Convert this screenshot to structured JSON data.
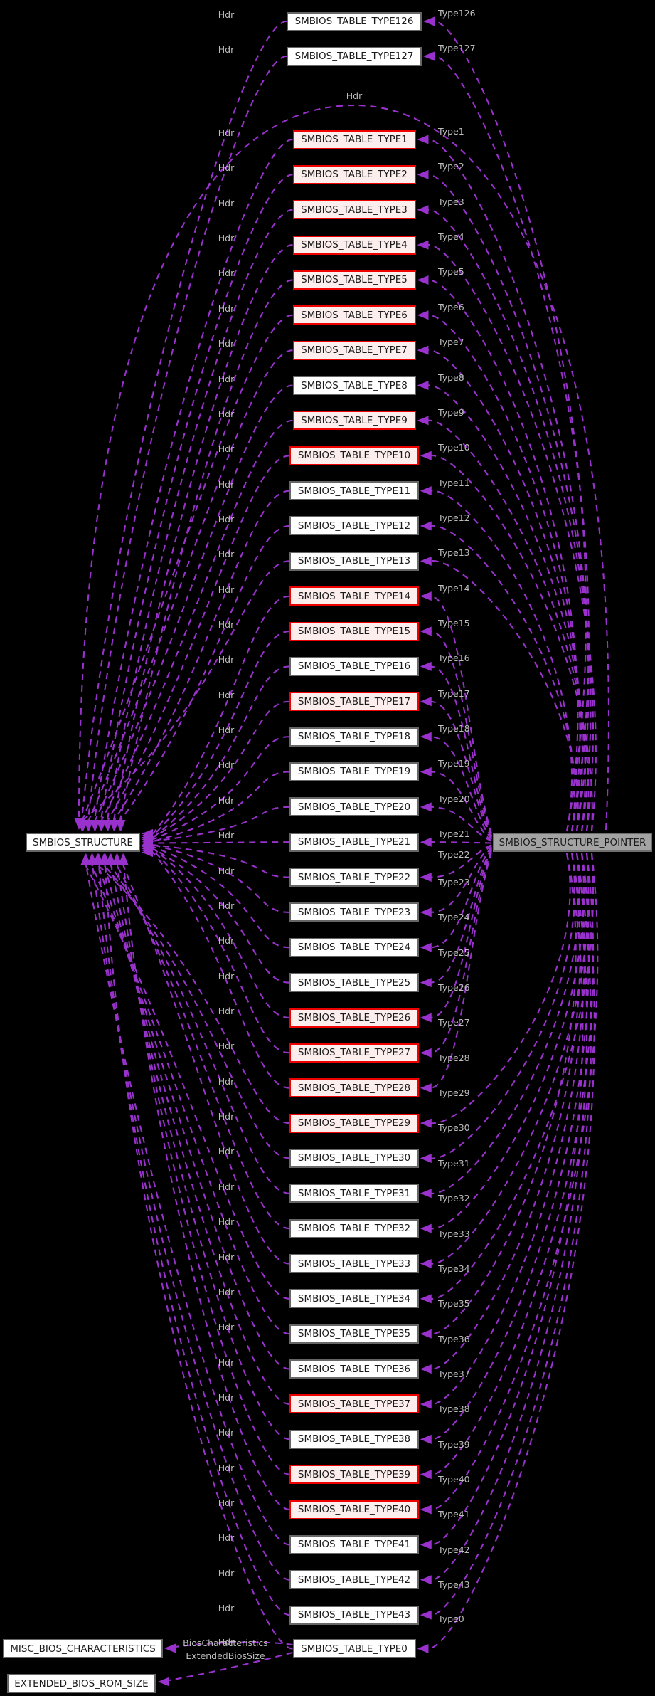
{
  "diagram": {
    "background_color": "#000000",
    "edge_color": "#9932cc",
    "edge_label_color": "#bdbdbd",
    "node_fill": "#ffffff",
    "node_border": "#666666",
    "node_text_color": "#1a1a1a",
    "red_node_border": "#ee0000",
    "red_node_fill": "#fdeeee",
    "left_node": {
      "label": "SMBIOS_STRUCTURE"
    },
    "right_node": {
      "label": "SMBIOS_STRUCTURE_POINTER",
      "fill": "#a3a3a3",
      "border": "#6e6e6e"
    },
    "top_hdr_label": "Hdr",
    "hdr_edge_label": "Hdr",
    "rows": [
      {
        "label": "SMBIOS_TABLE_TYPE126",
        "type_label": "Type126",
        "red": false
      },
      {
        "label": "SMBIOS_TABLE_TYPE127",
        "type_label": "Type127",
        "red": false
      },
      {
        "label": "SMBIOS_TABLE_TYPE1",
        "type_label": "Type1",
        "red": true
      },
      {
        "label": "SMBIOS_TABLE_TYPE2",
        "type_label": "Type2",
        "red": true
      },
      {
        "label": "SMBIOS_TABLE_TYPE3",
        "type_label": "Type3",
        "red": true
      },
      {
        "label": "SMBIOS_TABLE_TYPE4",
        "type_label": "Type4",
        "red": true
      },
      {
        "label": "SMBIOS_TABLE_TYPE5",
        "type_label": "Type5",
        "red": true
      },
      {
        "label": "SMBIOS_TABLE_TYPE6",
        "type_label": "Type6",
        "red": true
      },
      {
        "label": "SMBIOS_TABLE_TYPE7",
        "type_label": "Type7",
        "red": true
      },
      {
        "label": "SMBIOS_TABLE_TYPE8",
        "type_label": "Type8",
        "red": false
      },
      {
        "label": "SMBIOS_TABLE_TYPE9",
        "type_label": "Type9",
        "red": true
      },
      {
        "label": "SMBIOS_TABLE_TYPE10",
        "type_label": "Type10",
        "red": true
      },
      {
        "label": "SMBIOS_TABLE_TYPE11",
        "type_label": "Type11",
        "red": false
      },
      {
        "label": "SMBIOS_TABLE_TYPE12",
        "type_label": "Type12",
        "red": false
      },
      {
        "label": "SMBIOS_TABLE_TYPE13",
        "type_label": "Type13",
        "red": false
      },
      {
        "label": "SMBIOS_TABLE_TYPE14",
        "type_label": "Type14",
        "red": true
      },
      {
        "label": "SMBIOS_TABLE_TYPE15",
        "type_label": "Type15",
        "red": true
      },
      {
        "label": "SMBIOS_TABLE_TYPE16",
        "type_label": "Type16",
        "red": false
      },
      {
        "label": "SMBIOS_TABLE_TYPE17",
        "type_label": "Type17",
        "red": true
      },
      {
        "label": "SMBIOS_TABLE_TYPE18",
        "type_label": "Type18",
        "red": false
      },
      {
        "label": "SMBIOS_TABLE_TYPE19",
        "type_label": "Type19",
        "red": false
      },
      {
        "label": "SMBIOS_TABLE_TYPE20",
        "type_label": "Type20",
        "red": false
      },
      {
        "label": "SMBIOS_TABLE_TYPE21",
        "type_label": "Type21",
        "red": false
      },
      {
        "label": "SMBIOS_TABLE_TYPE22",
        "type_label": "Type22",
        "red": false
      },
      {
        "label": "SMBIOS_TABLE_TYPE23",
        "type_label": "Type23",
        "red": false
      },
      {
        "label": "SMBIOS_TABLE_TYPE24",
        "type_label": "Type24",
        "red": false
      },
      {
        "label": "SMBIOS_TABLE_TYPE25",
        "type_label": "Type25",
        "red": false
      },
      {
        "label": "SMBIOS_TABLE_TYPE26",
        "type_label": "Type26",
        "red": true
      },
      {
        "label": "SMBIOS_TABLE_TYPE27",
        "type_label": "Type27",
        "red": true
      },
      {
        "label": "SMBIOS_TABLE_TYPE28",
        "type_label": "Type28",
        "red": true
      },
      {
        "label": "SMBIOS_TABLE_TYPE29",
        "type_label": "Type29",
        "red": true
      },
      {
        "label": "SMBIOS_TABLE_TYPE30",
        "type_label": "Type30",
        "red": false
      },
      {
        "label": "SMBIOS_TABLE_TYPE31",
        "type_label": "Type31",
        "red": false
      },
      {
        "label": "SMBIOS_TABLE_TYPE32",
        "type_label": "Type32",
        "red": false
      },
      {
        "label": "SMBIOS_TABLE_TYPE33",
        "type_label": "Type33",
        "red": false
      },
      {
        "label": "SMBIOS_TABLE_TYPE34",
        "type_label": "Type34",
        "red": false
      },
      {
        "label": "SMBIOS_TABLE_TYPE35",
        "type_label": "Type35",
        "red": false
      },
      {
        "label": "SMBIOS_TABLE_TYPE36",
        "type_label": "Type36",
        "red": false
      },
      {
        "label": "SMBIOS_TABLE_TYPE37",
        "type_label": "Type37",
        "red": true
      },
      {
        "label": "SMBIOS_TABLE_TYPE38",
        "type_label": "Type38",
        "red": false
      },
      {
        "label": "SMBIOS_TABLE_TYPE39",
        "type_label": "Type39",
        "red": true
      },
      {
        "label": "SMBIOS_TABLE_TYPE40",
        "type_label": "Type40",
        "red": true
      },
      {
        "label": "SMBIOS_TABLE_TYPE41",
        "type_label": "Type41",
        "red": false
      },
      {
        "label": "SMBIOS_TABLE_TYPE42",
        "type_label": "Type42",
        "red": false
      },
      {
        "label": "SMBIOS_TABLE_TYPE43",
        "type_label": "Type43",
        "red": false
      },
      {
        "label": "SMBIOS_TABLE_TYPE0",
        "type_label": "Type0",
        "red": false
      }
    ],
    "bottom_nodes": [
      {
        "label": "MISC_BIOS_CHARACTERISTICS"
      },
      {
        "label": "EXTENDED_BIOS_ROM_SIZE"
      }
    ],
    "bottom_edges": [
      {
        "label": "BiosCharacteristics"
      },
      {
        "label": "ExtendedBiosSize"
      }
    ]
  }
}
